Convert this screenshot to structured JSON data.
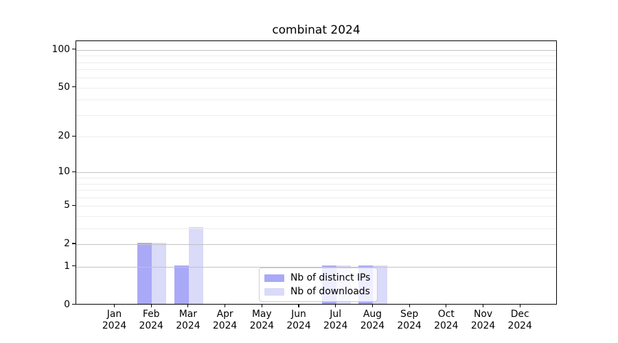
{
  "chart_data": {
    "type": "bar",
    "title": "combinat 2024",
    "x_year": "2024",
    "categories": [
      "Jan",
      "Feb",
      "Mar",
      "Apr",
      "May",
      "Jun",
      "Jul",
      "Aug",
      "Sep",
      "Oct",
      "Nov",
      "Dec"
    ],
    "series": [
      {
        "name": "Nb of distinct IPs",
        "color": "#a9a9f7",
        "values": [
          0,
          2,
          1,
          0,
          0,
          0,
          1,
          1,
          0,
          0,
          0,
          0
        ]
      },
      {
        "name": "Nb of downloads",
        "color": "#dadaf9",
        "values": [
          0,
          2,
          3,
          0,
          0,
          0,
          1,
          1,
          0,
          0,
          0,
          0
        ]
      }
    ],
    "yscale": "log1p",
    "ylim": [
      0,
      117
    ],
    "yticks": [
      0,
      1,
      2,
      5,
      10,
      20,
      50,
      100
    ],
    "major_gridlines": [
      1,
      2,
      10,
      100
    ],
    "minor_gridlines": [
      3,
      4,
      5,
      6,
      7,
      8,
      9,
      20,
      30,
      40,
      50,
      60,
      70,
      80,
      90
    ],
    "grid": true,
    "legend": {
      "position": "lower center",
      "entries": [
        "Nb of distinct IPs",
        "Nb of downloads"
      ]
    },
    "colors": {
      "major_grid": "#c2c2c2",
      "minor_grid": "#ededed",
      "spine": "#000000",
      "text": "#000000",
      "background": "#ffffff"
    }
  }
}
